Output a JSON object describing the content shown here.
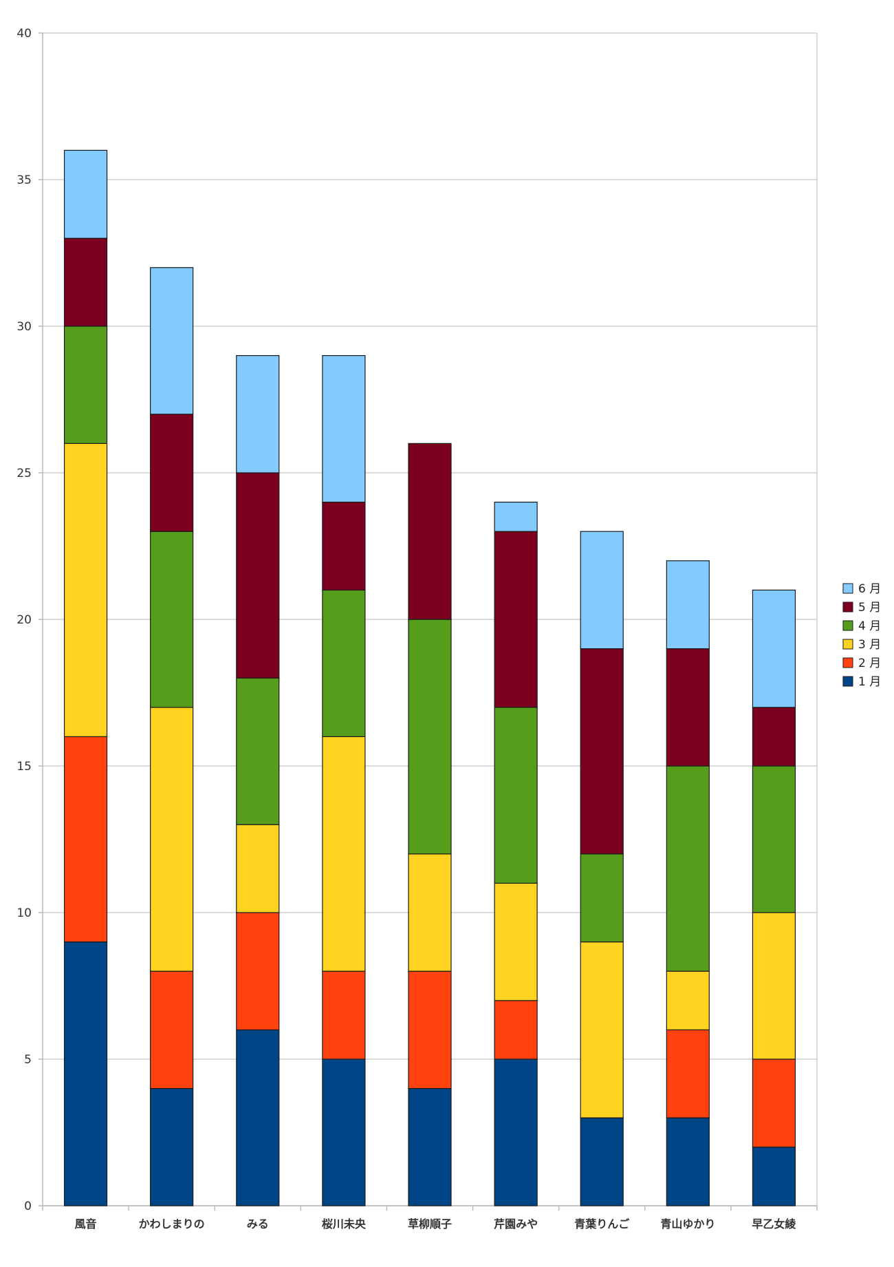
{
  "chart_data": {
    "type": "bar",
    "stacked": true,
    "title": "",
    "xlabel": "",
    "ylabel": "",
    "ylim": [
      0,
      40
    ],
    "yticks": [
      0,
      5,
      10,
      15,
      20,
      25,
      30,
      35,
      40
    ],
    "grid": true,
    "legend_position": "right",
    "categories": [
      "風音",
      "かわしまりの",
      "みる",
      "桜川未央",
      "草柳順子",
      "芹園みや",
      "青葉りんご",
      "青山ゆかり",
      "早乙女綾"
    ],
    "series": [
      {
        "name": "1 月",
        "color": "#004586",
        "values": [
          9,
          4,
          6,
          5,
          4,
          5,
          3,
          3,
          2
        ]
      },
      {
        "name": "2 月",
        "color": "#ff420e",
        "values": [
          7,
          4,
          4,
          3,
          4,
          2,
          0,
          3,
          3
        ]
      },
      {
        "name": "3 月",
        "color": "#ffd320",
        "values": [
          10,
          9,
          3,
          8,
          4,
          4,
          6,
          2,
          5
        ]
      },
      {
        "name": "4 月",
        "color": "#579d1c",
        "values": [
          4,
          6,
          5,
          5,
          8,
          6,
          3,
          7,
          5
        ]
      },
      {
        "name": "5 月",
        "color": "#7e0021",
        "values": [
          3,
          4,
          7,
          3,
          6,
          6,
          7,
          4,
          2
        ]
      },
      {
        "name": "6 月",
        "color": "#83caff",
        "values": [
          3,
          5,
          4,
          5,
          0,
          1,
          4,
          3,
          4
        ]
      }
    ]
  }
}
